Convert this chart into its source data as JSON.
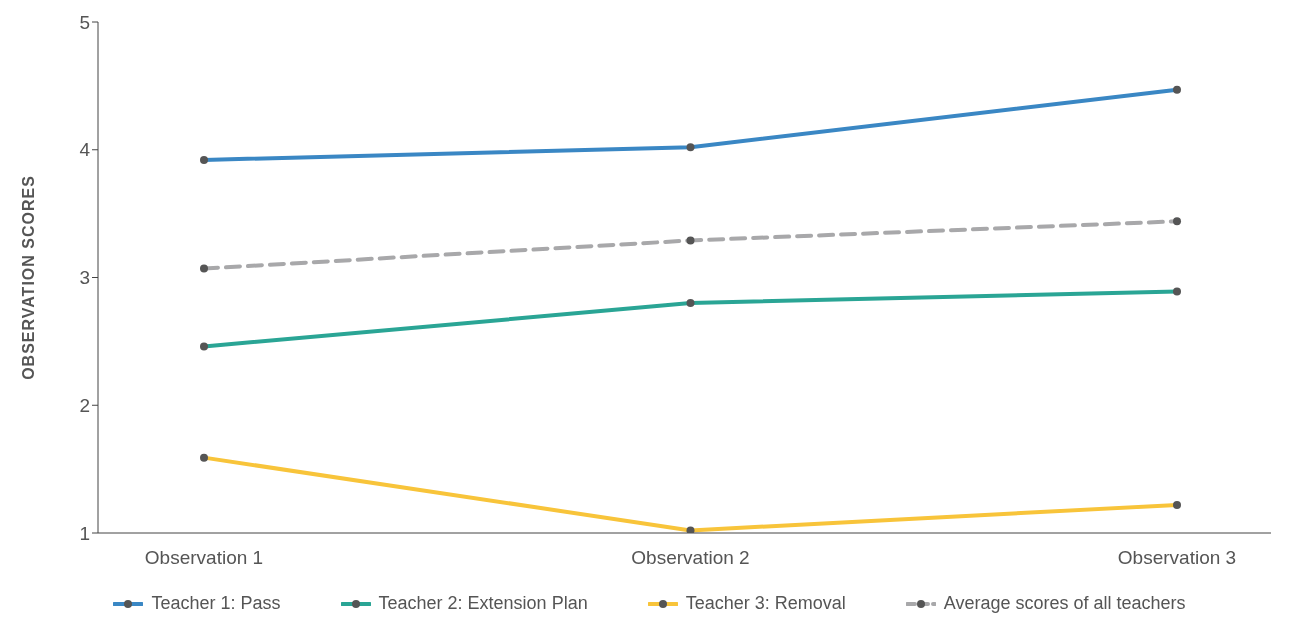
{
  "chart_data": {
    "type": "line",
    "ylabel": "OBSERVATION SCORES",
    "categories": [
      "Observation 1",
      "Observation 2",
      "Observation 3"
    ],
    "series": [
      {
        "name": "Teacher 1: Pass",
        "color": "#3a87c4",
        "values": [
          3.92,
          4.02,
          4.47
        ]
      },
      {
        "name": "Teacher 2: Extension Plan",
        "color": "#2aa595",
        "values": [
          2.46,
          2.8,
          2.89
        ]
      },
      {
        "name": "Teacher 3: Removal",
        "color": "#f8c43a",
        "values": [
          1.59,
          1.02,
          1.22
        ]
      },
      {
        "name": "Average scores of all teachers",
        "color": "#a8a8aa",
        "values": [
          3.07,
          3.29,
          3.44
        ],
        "line_style": "dashed"
      }
    ],
    "ylim": [
      1,
      5
    ],
    "yticks": [
      1,
      2,
      3,
      4,
      5
    ],
    "grid": false,
    "legend": "bottom",
    "marker": "circle",
    "line_style": "solid"
  }
}
